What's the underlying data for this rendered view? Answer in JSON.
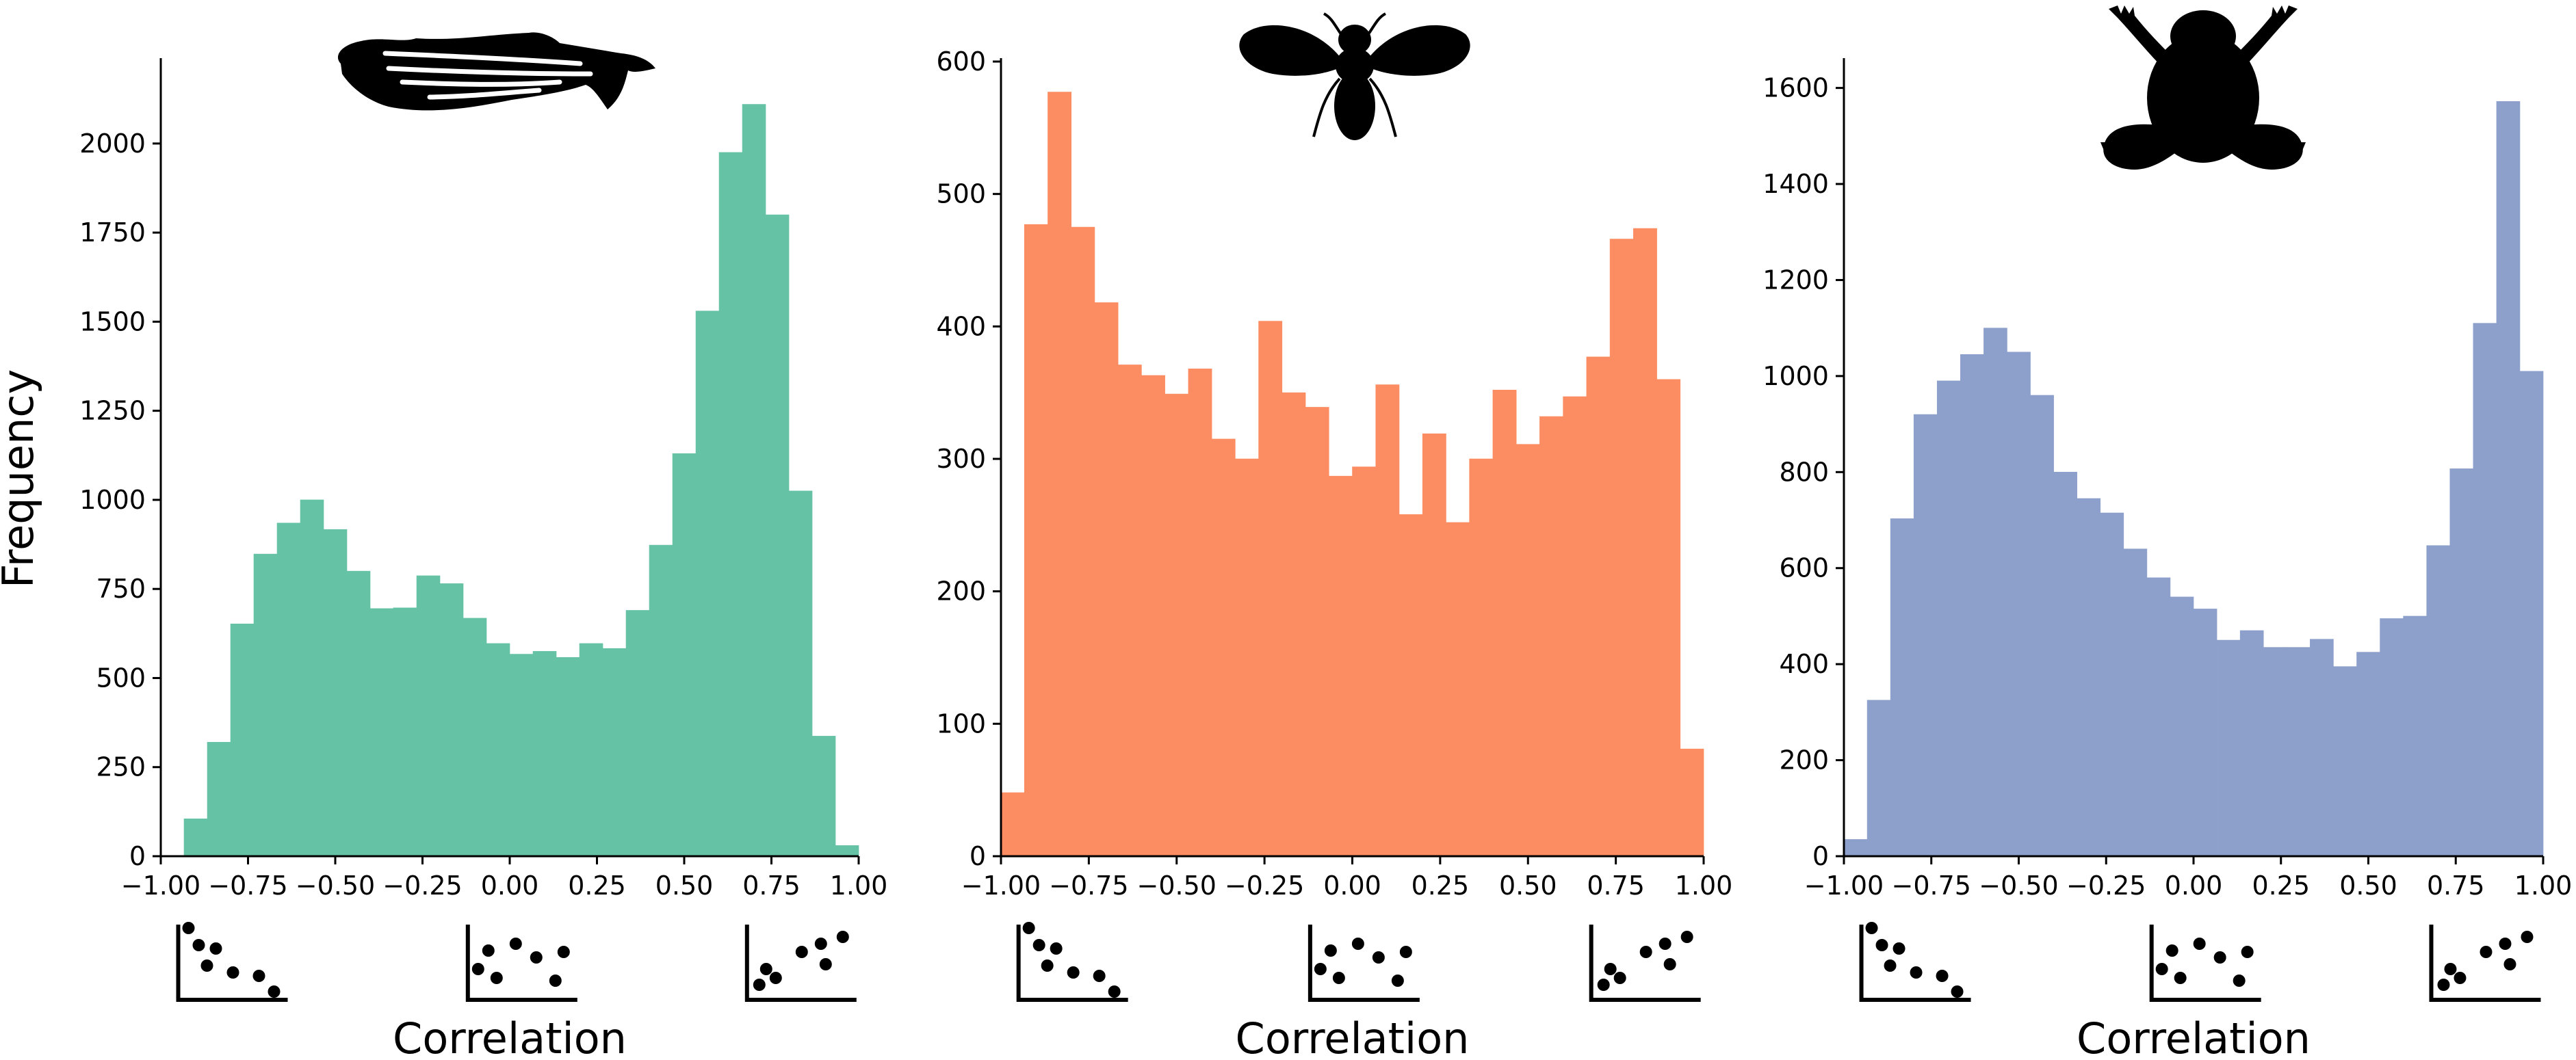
{
  "ylabel": "Frequency",
  "chart_data": [
    {
      "type": "bar",
      "bin_start": -1.0,
      "bin_width": 0.06667,
      "values": [
        0,
        105,
        320,
        652,
        848,
        935,
        1000,
        917,
        800,
        695,
        697,
        787,
        765,
        668,
        597,
        567,
        575,
        558,
        597,
        583,
        690,
        873,
        1130,
        1530,
        1975,
        2110,
        1800,
        1025,
        337,
        30
      ],
      "color": "#66c2a5",
      "xlim": [
        -1.0,
        1.0
      ],
      "ylim": [
        0,
        2230
      ],
      "xticks": [
        "−1.00",
        "−0.75",
        "−0.50",
        "−0.25",
        "0.00",
        "0.25",
        "0.50",
        "0.75",
        "1.00"
      ],
      "yticks": [
        "0",
        "250",
        "500",
        "750",
        "1000",
        "1250",
        "1500",
        "1750",
        "2000"
      ],
      "xlabel": "Correlation",
      "ylabel": "",
      "silhouette": "zebrafish-icon",
      "grid": false
    },
    {
      "type": "bar",
      "bin_start": -1.0,
      "bin_width": 0.06667,
      "values": [
        48,
        477,
        577,
        475,
        418,
        371,
        363,
        349,
        368,
        315,
        300,
        404,
        350,
        339,
        287,
        294,
        356,
        258,
        319,
        252,
        300,
        352,
        311,
        332,
        347,
        377,
        466,
        474,
        360,
        81
      ],
      "color": "#fc8d62",
      "xlim": [
        -1.0,
        1.0
      ],
      "ylim": [
        0,
        600
      ],
      "xticks": [
        "−1.00",
        "−0.75",
        "−0.50",
        "−0.25",
        "0.00",
        "0.25",
        "0.50",
        "0.75",
        "1.00"
      ],
      "yticks": [
        "0",
        "100",
        "200",
        "300",
        "400",
        "500",
        "600"
      ],
      "xlabel": "Correlation",
      "ylabel": "",
      "silhouette": "fly-icon",
      "grid": false
    },
    {
      "type": "bar",
      "bin_start": -1.0,
      "bin_width": 0.06667,
      "values": [
        35,
        325,
        703,
        920,
        990,
        1045,
        1100,
        1050,
        960,
        800,
        745,
        715,
        640,
        580,
        540,
        515,
        450,
        470,
        435,
        435,
        452,
        395,
        425,
        495,
        500,
        647,
        807,
        1110,
        1572,
        1010
      ],
      "color": "#8da0cb",
      "xlim": [
        -1.0,
        1.0
      ],
      "ylim": [
        0,
        1655
      ],
      "xticks": [
        "−1.00",
        "−0.75",
        "−0.50",
        "−0.25",
        "0.00",
        "0.25",
        "0.50",
        "0.75",
        "1.00"
      ],
      "yticks": [
        "0",
        "200",
        "400",
        "600",
        "800",
        "1000",
        "1200",
        "1400",
        "1600"
      ],
      "xlabel": "Correlation",
      "ylabel": "",
      "silhouette": "frog-icon",
      "grid": false
    }
  ],
  "mini_scatter_icons": [
    "negative-correlation-icon",
    "no-correlation-icon",
    "positive-correlation-icon"
  ]
}
